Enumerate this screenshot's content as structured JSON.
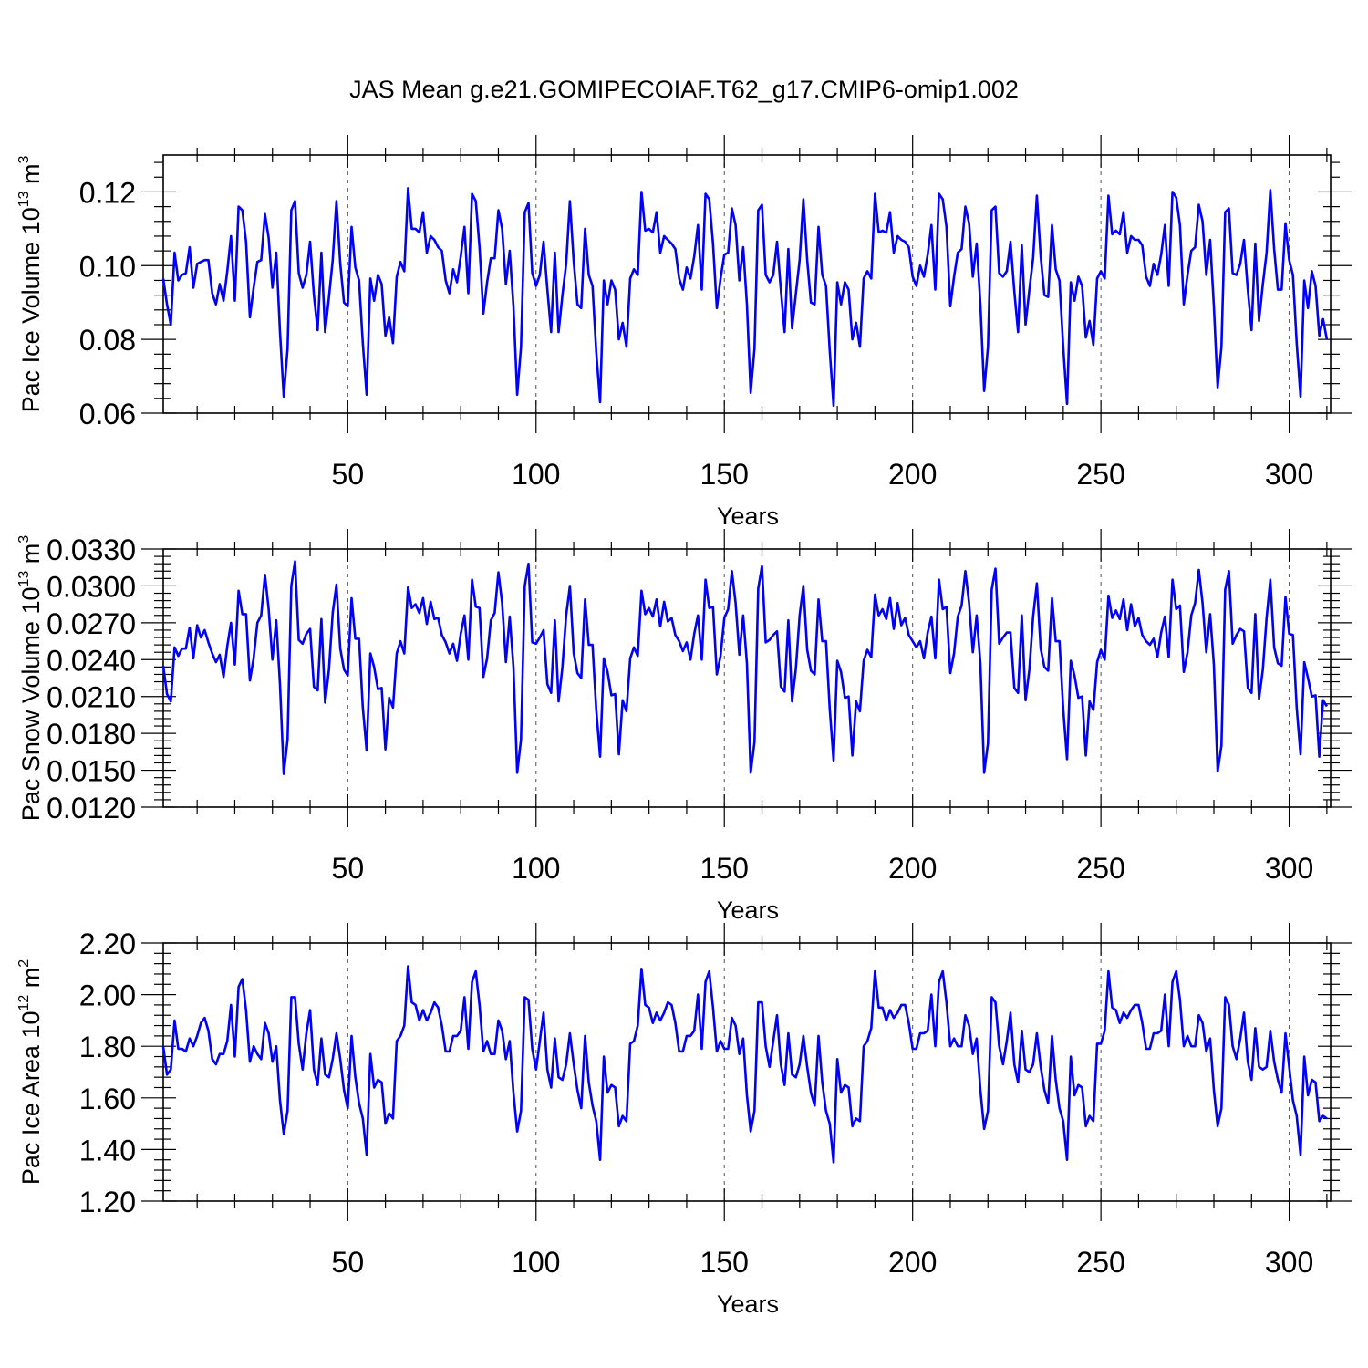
{
  "title": "JAS Mean g.e21.GOMIPECOIAF.T62_g17.CMIP6-omip1.002",
  "series_color": "#0000ff",
  "chart_data": [
    {
      "type": "line",
      "name": "pac-ice-volume",
      "title": "JAS Mean g.e21.GOMIPECOIAF.T62_g17.CMIP6-omip1.002",
      "xlabel": "Years",
      "ylabel": "Pac Ice Volume 10",
      "ylabel_sup": "13",
      "ylabel_unit": " m",
      "ylabel_unit_sup": "3",
      "xlim": [
        1,
        311
      ],
      "ylim": [
        0.06,
        0.13
      ],
      "xticks": [
        50,
        100,
        150,
        200,
        250,
        300
      ],
      "xtick_labels": [
        "50",
        "100",
        "150",
        "200",
        "250",
        "300"
      ],
      "yticks": [
        0.06,
        0.08,
        0.1,
        0.12
      ],
      "ytick_labels": [
        "0.06",
        "0.08",
        "0.10",
        "0.12"
      ],
      "grid_x": [
        50,
        100,
        150,
        200,
        250,
        300
      ],
      "x_start": 1,
      "y": [
        0.0965,
        0.0895,
        0.084,
        0.1035,
        0.096,
        0.0975,
        0.098,
        0.105,
        0.094,
        0.1005,
        0.101,
        0.1015,
        0.1015,
        0.0925,
        0.0895,
        0.095,
        0.0905,
        0.0985,
        0.108,
        0.0905,
        0.116,
        0.115,
        0.1065,
        0.086,
        0.094,
        0.101,
        0.1015,
        0.114,
        0.1075,
        0.094,
        0.1035,
        0.082,
        0.0645,
        0.0775,
        0.115,
        0.1175,
        0.098,
        0.094,
        0.0975,
        0.1065,
        0.092,
        0.0825,
        0.1035,
        0.082,
        0.0915,
        0.1015,
        0.1175,
        0.1005,
        0.09,
        0.089,
        0.1105,
        0.0995,
        0.096,
        0.079,
        0.065,
        0.0965,
        0.0905,
        0.0975,
        0.095,
        0.081,
        0.086,
        0.079,
        0.097,
        0.101,
        0.0985,
        0.121,
        0.11,
        0.11,
        0.109,
        0.1145,
        0.1035,
        0.108,
        0.107,
        0.105,
        0.104,
        0.096,
        0.0925,
        0.099,
        0.0955,
        0.1025,
        0.1105,
        0.0925,
        0.1195,
        0.1175,
        0.105,
        0.087,
        0.0955,
        0.102,
        0.102,
        0.115,
        0.11,
        0.095,
        0.104,
        0.089,
        0.065,
        0.078,
        0.1145,
        0.117,
        0.098,
        0.0945,
        0.0975,
        0.1065,
        0.0935,
        0.082,
        0.1035,
        0.082,
        0.092,
        0.1005,
        0.1175,
        0.101,
        0.0895,
        0.0885,
        0.11,
        0.0975,
        0.0945,
        0.0765,
        0.063,
        0.096,
        0.0895,
        0.096,
        0.0935,
        0.08,
        0.0845,
        0.078,
        0.0965,
        0.099,
        0.0975,
        0.12,
        0.1095,
        0.11,
        0.109,
        0.1145,
        0.1035,
        0.108,
        0.107,
        0.106,
        0.1045,
        0.0965,
        0.0935,
        0.0995,
        0.0965,
        0.1025,
        0.111,
        0.0935,
        0.1195,
        0.118,
        0.106,
        0.0885,
        0.0965,
        0.103,
        0.1035,
        0.1155,
        0.111,
        0.096,
        0.105,
        0.0895,
        0.0655,
        0.0775,
        0.115,
        0.1165,
        0.0975,
        0.0955,
        0.0975,
        0.1065,
        0.0935,
        0.082,
        0.1045,
        0.083,
        0.0925,
        0.1015,
        0.118,
        0.1015,
        0.09,
        0.0895,
        0.1105,
        0.0975,
        0.0945,
        0.077,
        0.062,
        0.0955,
        0.0895,
        0.0955,
        0.0935,
        0.08,
        0.0845,
        0.078,
        0.0965,
        0.0985,
        0.0965,
        0.1195,
        0.109,
        0.1095,
        0.109,
        0.1145,
        0.1035,
        0.108,
        0.107,
        0.1065,
        0.105,
        0.097,
        0.0945,
        0.1,
        0.097,
        0.103,
        0.111,
        0.0935,
        0.1195,
        0.118,
        0.1105,
        0.089,
        0.097,
        0.1035,
        0.1045,
        0.116,
        0.1115,
        0.097,
        0.106,
        0.0895,
        0.066,
        0.078,
        0.115,
        0.116,
        0.098,
        0.097,
        0.0985,
        0.1065,
        0.093,
        0.082,
        0.1055,
        0.084,
        0.0935,
        0.102,
        0.119,
        0.1025,
        0.092,
        0.0915,
        0.111,
        0.099,
        0.096,
        0.078,
        0.0625,
        0.0955,
        0.0905,
        0.097,
        0.0945,
        0.0805,
        0.085,
        0.0785,
        0.0965,
        0.0985,
        0.0965,
        0.119,
        0.1085,
        0.1095,
        0.1085,
        0.1145,
        0.1035,
        0.108,
        0.107,
        0.107,
        0.1055,
        0.097,
        0.0945,
        0.1005,
        0.0975,
        0.103,
        0.111,
        0.0945,
        0.12,
        0.1185,
        0.111,
        0.0895,
        0.0975,
        0.104,
        0.105,
        0.1165,
        0.112,
        0.0975,
        0.107,
        0.089,
        0.067,
        0.078,
        0.1145,
        0.1155,
        0.098,
        0.0975,
        0.1005,
        0.107,
        0.0935,
        0.0825,
        0.106,
        0.085,
        0.095,
        0.1035,
        0.1205,
        0.1045,
        0.0935,
        0.0935,
        0.1115,
        0.1015,
        0.0975,
        0.079,
        0.0645,
        0.096,
        0.0885,
        0.0985,
        0.0945,
        0.081,
        0.0855,
        0.08
      ]
    },
    {
      "type": "line",
      "name": "pac-snow-volume",
      "xlabel": "Years",
      "ylabel": "Pac Snow Volume 10",
      "ylabel_sup": "13",
      "ylabel_unit": " m",
      "ylabel_unit_sup": "3",
      "xlim": [
        1,
        311
      ],
      "ylim": [
        0.012,
        0.033
      ],
      "xticks": [
        50,
        100,
        150,
        200,
        250,
        300
      ],
      "xtick_labels": [
        "50",
        "100",
        "150",
        "200",
        "250",
        "300"
      ],
      "yticks": [
        0.012,
        0.015,
        0.018,
        0.021,
        0.024,
        0.027,
        0.03,
        0.033
      ],
      "ytick_labels": [
        "0.0120",
        "0.0150",
        "0.0180",
        "0.0210",
        "0.0240",
        "0.0270",
        "0.0300",
        "0.0330"
      ],
      "grid_x": [
        50,
        100,
        150,
        200,
        250,
        300
      ],
      "x_start": 1,
      "y": [
        0.0235,
        0.0212,
        0.0206,
        0.025,
        0.0243,
        0.0249,
        0.0249,
        0.0266,
        0.0241,
        0.0268,
        0.0258,
        0.0264,
        0.0254,
        0.0245,
        0.0238,
        0.0244,
        0.0226,
        0.0251,
        0.027,
        0.0236,
        0.0296,
        0.0277,
        0.0277,
        0.0223,
        0.0241,
        0.027,
        0.0276,
        0.0309,
        0.0281,
        0.024,
        0.0272,
        0.022,
        0.0147,
        0.0175,
        0.03,
        0.032,
        0.0256,
        0.0253,
        0.0261,
        0.0265,
        0.0218,
        0.0215,
        0.0273,
        0.0205,
        0.0232,
        0.0278,
        0.0301,
        0.0249,
        0.0232,
        0.0227,
        0.029,
        0.0257,
        0.0257,
        0.0201,
        0.0166,
        0.0245,
        0.0234,
        0.0216,
        0.0217,
        0.0167,
        0.0209,
        0.0201,
        0.0245,
        0.0255,
        0.0245,
        0.0299,
        0.0282,
        0.0285,
        0.0278,
        0.029,
        0.0269,
        0.0287,
        0.0273,
        0.0274,
        0.026,
        0.0254,
        0.0245,
        0.0253,
        0.0239,
        0.0261,
        0.0276,
        0.024,
        0.0305,
        0.0283,
        0.0282,
        0.0226,
        0.0241,
        0.0272,
        0.0278,
        0.0311,
        0.0286,
        0.0238,
        0.0275,
        0.0234,
        0.0148,
        0.0175,
        0.03,
        0.0318,
        0.0254,
        0.0253,
        0.0258,
        0.0264,
        0.022,
        0.0213,
        0.0272,
        0.0206,
        0.0234,
        0.0276,
        0.03,
        0.0245,
        0.0229,
        0.0225,
        0.0289,
        0.0252,
        0.0252,
        0.0199,
        0.0161,
        0.0241,
        0.023,
        0.0211,
        0.0212,
        0.0163,
        0.0207,
        0.0198,
        0.0241,
        0.025,
        0.0243,
        0.0296,
        0.0277,
        0.0282,
        0.0275,
        0.0289,
        0.0267,
        0.0287,
        0.0271,
        0.0274,
        0.026,
        0.0255,
        0.0247,
        0.0254,
        0.024,
        0.0261,
        0.0276,
        0.024,
        0.0305,
        0.0282,
        0.0283,
        0.0228,
        0.0243,
        0.0274,
        0.0281,
        0.0312,
        0.0286,
        0.0244,
        0.0276,
        0.0237,
        0.0148,
        0.0173,
        0.0298,
        0.0316,
        0.0254,
        0.0256,
        0.026,
        0.0263,
        0.0218,
        0.0214,
        0.0272,
        0.0206,
        0.0233,
        0.0276,
        0.03,
        0.0248,
        0.0231,
        0.0228,
        0.0289,
        0.0255,
        0.0255,
        0.02,
        0.0158,
        0.0239,
        0.023,
        0.0209,
        0.021,
        0.0162,
        0.0206,
        0.0198,
        0.0239,
        0.0248,
        0.0242,
        0.0293,
        0.0276,
        0.0281,
        0.0273,
        0.029,
        0.0265,
        0.0286,
        0.0268,
        0.0274,
        0.026,
        0.0255,
        0.025,
        0.0255,
        0.0241,
        0.0262,
        0.0275,
        0.0241,
        0.0305,
        0.0281,
        0.0283,
        0.0229,
        0.0245,
        0.0275,
        0.0284,
        0.0312,
        0.0286,
        0.0246,
        0.0276,
        0.0237,
        0.0148,
        0.0172,
        0.0297,
        0.0314,
        0.0253,
        0.0258,
        0.0262,
        0.0262,
        0.0217,
        0.0213,
        0.0276,
        0.0207,
        0.0232,
        0.0275,
        0.0302,
        0.0249,
        0.0234,
        0.0231,
        0.029,
        0.0255,
        0.0255,
        0.02,
        0.0159,
        0.0239,
        0.0227,
        0.0209,
        0.021,
        0.0162,
        0.0206,
        0.0199,
        0.0238,
        0.0248,
        0.024,
        0.0292,
        0.0274,
        0.028,
        0.0273,
        0.0289,
        0.0264,
        0.0285,
        0.0267,
        0.0274,
        0.026,
        0.0255,
        0.0252,
        0.0257,
        0.0242,
        0.0262,
        0.0275,
        0.0242,
        0.0305,
        0.0281,
        0.0284,
        0.023,
        0.0246,
        0.0276,
        0.0286,
        0.0313,
        0.0286,
        0.0246,
        0.0277,
        0.0236,
        0.0149,
        0.017,
        0.0297,
        0.0312,
        0.0253,
        0.026,
        0.0265,
        0.0263,
        0.0217,
        0.0213,
        0.0277,
        0.0208,
        0.0232,
        0.0274,
        0.0305,
        0.025,
        0.0237,
        0.0235,
        0.0291,
        0.0261,
        0.026,
        0.0201,
        0.0163,
        0.0238,
        0.0225,
        0.021,
        0.0211,
        0.0161,
        0.0207,
        0.0202
      ]
    },
    {
      "type": "line",
      "name": "pac-ice-area",
      "xlabel": "Years",
      "ylabel": "Pac Ice Area 10",
      "ylabel_sup": "12",
      "ylabel_unit": " m",
      "ylabel_unit_sup": "2",
      "xlim": [
        1,
        311
      ],
      "ylim": [
        1.2,
        2.2
      ],
      "xticks": [
        50,
        100,
        150,
        200,
        250,
        300
      ],
      "xtick_labels": [
        "50",
        "100",
        "150",
        "200",
        "250",
        "300"
      ],
      "yticks": [
        1.2,
        1.4,
        1.6,
        1.8,
        2.0,
        2.2
      ],
      "ytick_labels": [
        "1.20",
        "1.40",
        "1.60",
        "1.80",
        "2.00",
        "2.20"
      ],
      "grid_x": [
        50,
        100,
        150,
        200,
        250,
        300
      ],
      "x_start": 1,
      "y": [
        1.8,
        1.69,
        1.71,
        1.9,
        1.79,
        1.79,
        1.78,
        1.83,
        1.8,
        1.84,
        1.89,
        1.91,
        1.86,
        1.75,
        1.73,
        1.77,
        1.77,
        1.82,
        1.96,
        1.76,
        2.03,
        2.06,
        1.94,
        1.74,
        1.8,
        1.77,
        1.75,
        1.89,
        1.85,
        1.74,
        1.8,
        1.59,
        1.46,
        1.55,
        1.99,
        1.99,
        1.81,
        1.71,
        1.85,
        1.94,
        1.71,
        1.65,
        1.83,
        1.69,
        1.68,
        1.75,
        1.85,
        1.75,
        1.63,
        1.56,
        1.84,
        1.68,
        1.58,
        1.52,
        1.38,
        1.77,
        1.64,
        1.67,
        1.66,
        1.5,
        1.54,
        1.52,
        1.82,
        1.84,
        1.88,
        2.11,
        1.97,
        1.96,
        1.9,
        1.94,
        1.9,
        1.93,
        1.97,
        1.95,
        1.88,
        1.78,
        1.78,
        1.84,
        1.84,
        1.86,
        1.99,
        1.79,
        2.05,
        2.09,
        1.96,
        1.78,
        1.82,
        1.77,
        1.77,
        1.9,
        1.86,
        1.75,
        1.82,
        1.62,
        1.47,
        1.55,
        1.99,
        1.98,
        1.79,
        1.71,
        1.82,
        1.93,
        1.71,
        1.64,
        1.83,
        1.68,
        1.67,
        1.73,
        1.85,
        1.73,
        1.63,
        1.56,
        1.84,
        1.66,
        1.57,
        1.51,
        1.36,
        1.76,
        1.62,
        1.65,
        1.64,
        1.49,
        1.53,
        1.51,
        1.81,
        1.82,
        1.88,
        2.1,
        1.96,
        1.95,
        1.89,
        1.93,
        1.9,
        1.93,
        1.97,
        1.96,
        1.89,
        1.78,
        1.78,
        1.84,
        1.84,
        1.86,
        2.0,
        1.79,
        2.05,
        2.09,
        1.95,
        1.78,
        1.82,
        1.79,
        1.79,
        1.91,
        1.88,
        1.77,
        1.83,
        1.61,
        1.47,
        1.55,
        1.97,
        1.97,
        1.8,
        1.72,
        1.82,
        1.92,
        1.73,
        1.65,
        1.85,
        1.69,
        1.68,
        1.73,
        1.84,
        1.72,
        1.62,
        1.57,
        1.84,
        1.66,
        1.55,
        1.5,
        1.35,
        1.75,
        1.62,
        1.65,
        1.64,
        1.49,
        1.52,
        1.51,
        1.8,
        1.82,
        1.87,
        2.09,
        1.95,
        1.95,
        1.9,
        1.94,
        1.91,
        1.93,
        1.96,
        1.96,
        1.89,
        1.79,
        1.79,
        1.85,
        1.85,
        1.86,
        2.0,
        1.8,
        2.05,
        2.09,
        1.97,
        1.8,
        1.83,
        1.8,
        1.8,
        1.92,
        1.88,
        1.77,
        1.83,
        1.63,
        1.48,
        1.55,
        1.99,
        1.97,
        1.8,
        1.73,
        1.82,
        1.93,
        1.73,
        1.66,
        1.86,
        1.71,
        1.7,
        1.73,
        1.85,
        1.72,
        1.63,
        1.58,
        1.84,
        1.67,
        1.56,
        1.51,
        1.36,
        1.76,
        1.61,
        1.65,
        1.64,
        1.49,
        1.53,
        1.51,
        1.81,
        1.81,
        1.86,
        2.09,
        1.95,
        1.94,
        1.89,
        1.93,
        1.91,
        1.94,
        1.96,
        1.96,
        1.89,
        1.79,
        1.79,
        1.85,
        1.85,
        1.86,
        2.0,
        1.8,
        2.05,
        2.09,
        1.98,
        1.8,
        1.84,
        1.8,
        1.8,
        1.92,
        1.89,
        1.78,
        1.83,
        1.63,
        1.49,
        1.56,
        1.99,
        1.96,
        1.8,
        1.75,
        1.83,
        1.93,
        1.74,
        1.67,
        1.87,
        1.72,
        1.71,
        1.72,
        1.86,
        1.74,
        1.67,
        1.62,
        1.85,
        1.72,
        1.59,
        1.53,
        1.38,
        1.76,
        1.61,
        1.67,
        1.66,
        1.51,
        1.53,
        1.52
      ]
    }
  ]
}
